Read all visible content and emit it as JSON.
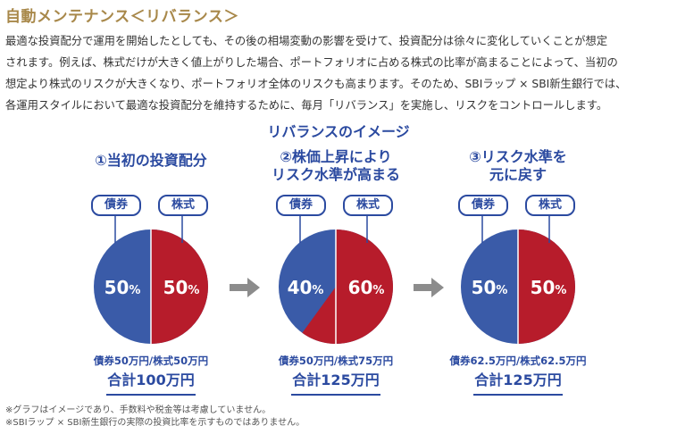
{
  "title": "自動メンテナンス＜リバランス＞",
  "body_lines": [
    "最適な投資配分で運用を開始したとしても、その後の相場変動の影響を受けて、投資配分は徐々に変化していくことが想定",
    "されます。例えば、株式だけが大きく値上がりした場合、ポートフォリオに占める株式の比率が高まることによって、当初の",
    "想定より株式のリスクが大きくなり、ポートフォリオ全体のリスクも高まります。そのため、SBIラップ × SBI新生銀行では、",
    "各運用スタイルにおいて最適な投資配分を維持するために、毎月「リバランス」を実施し、リスクをコントロールします。"
  ],
  "image_title": "リバランスのイメージ",
  "colors": {
    "bond": "#3a5ba8",
    "stock": "#b71c2b",
    "title": "#a8884a",
    "arrow": "#8c8c8c"
  },
  "steps": [
    {
      "heading": "①当初の投資配分",
      "bond_label": "債券",
      "stock_label": "株式",
      "bond_pct": 50,
      "stock_pct": 50,
      "bond_text": "50",
      "stock_text": "50",
      "pct_sign": "%",
      "breakdown": "債券50万円/株式50万円",
      "total": "合計100万円"
    },
    {
      "heading": "②株価上昇により\nリスク水準が高まる",
      "bond_label": "債券",
      "stock_label": "株式",
      "bond_pct": 40,
      "stock_pct": 60,
      "bond_text": "40",
      "stock_text": "60",
      "pct_sign": "%",
      "breakdown": "債券50万円/株式75万円",
      "total": "合計125万円"
    },
    {
      "heading": "③リスク水準を\n元に戻す",
      "bond_label": "債券",
      "stock_label": "株式",
      "bond_pct": 50,
      "stock_pct": 50,
      "bond_text": "50",
      "stock_text": "50",
      "pct_sign": "%",
      "breakdown": "債券62.5万円/株式62.5万円",
      "total": "合計125万円"
    }
  ],
  "notes": [
    "※グラフはイメージであり、手数料や税金等は考慮していません。",
    "※SBIラップ × SBI新生銀行の実際の投資比率を示すものではありません。"
  ]
}
